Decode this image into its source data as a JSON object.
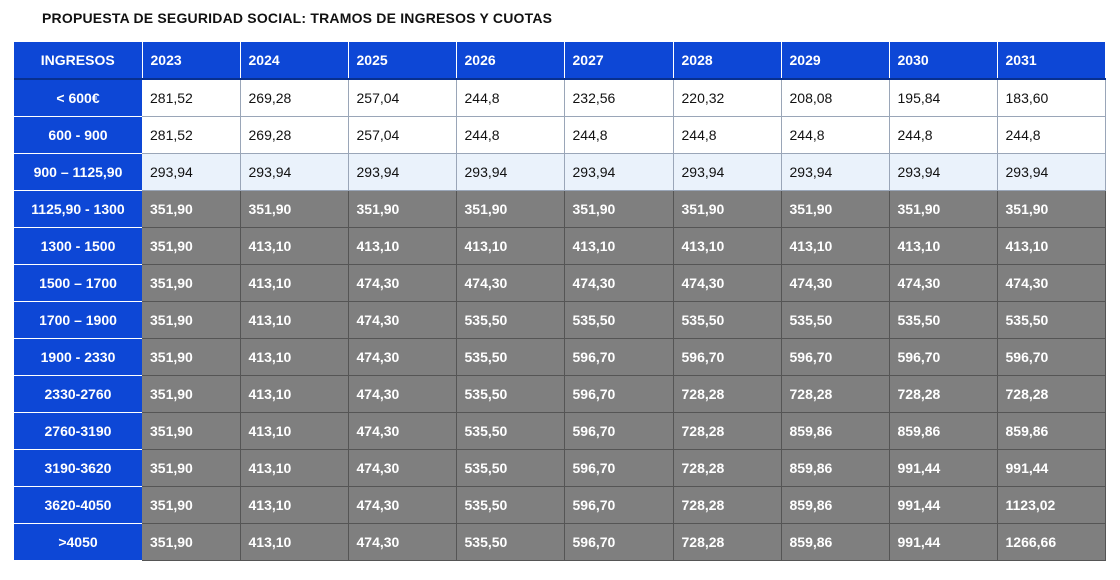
{
  "title": "PROPUESTA DE SEGURIDAD SOCIAL: TRAMOS DE INGRESOS Y CUOTAS",
  "table": {
    "corner_label": "INGRESOS",
    "years": [
      "2023",
      "2024",
      "2025",
      "2026",
      "2027",
      "2028",
      "2029",
      "2030",
      "2031"
    ],
    "rows": [
      {
        "label": "< 600€",
        "style": "light",
        "values": [
          "281,52",
          "269,28",
          "257,04",
          "244,8",
          "232,56",
          "220,32",
          "208,08",
          "195,84",
          "183,60"
        ]
      },
      {
        "label": "600 - 900",
        "style": "light",
        "values": [
          "281,52",
          "269,28",
          "257,04",
          "244,8",
          "244,8",
          "244,8",
          "244,8",
          "244,8",
          "244,8"
        ]
      },
      {
        "label": "900 – 1125,90",
        "style": "light-blue",
        "values": [
          "293,94",
          "293,94",
          "293,94",
          "293,94",
          "293,94",
          "293,94",
          "293,94",
          "293,94",
          "293,94"
        ]
      },
      {
        "label": "1125,90 - 1300",
        "style": "dark",
        "values": [
          "351,90",
          "351,90",
          "351,90",
          "351,90",
          "351,90",
          "351,90",
          "351,90",
          "351,90",
          "351,90"
        ]
      },
      {
        "label": "1300 - 1500",
        "style": "dark",
        "values": [
          "351,90",
          "413,10",
          "413,10",
          "413,10",
          "413,10",
          "413,10",
          "413,10",
          "413,10",
          "413,10"
        ]
      },
      {
        "label": "1500 – 1700",
        "style": "dark",
        "values": [
          "351,90",
          "413,10",
          "474,30",
          "474,30",
          "474,30",
          "474,30",
          "474,30",
          "474,30",
          "474,30"
        ]
      },
      {
        "label": "1700 – 1900",
        "style": "dark",
        "values": [
          "351,90",
          "413,10",
          "474,30",
          "535,50",
          "535,50",
          "535,50",
          "535,50",
          "535,50",
          "535,50"
        ]
      },
      {
        "label": "1900 - 2330",
        "style": "dark",
        "values": [
          "351,90",
          "413,10",
          "474,30",
          "535,50",
          "596,70",
          "596,70",
          "596,70",
          "596,70",
          "596,70"
        ]
      },
      {
        "label": "2330-2760",
        "style": "dark",
        "values": [
          "351,90",
          "413,10",
          "474,30",
          "535,50",
          "596,70",
          "728,28",
          "728,28",
          "728,28",
          "728,28"
        ]
      },
      {
        "label": "2760-3190",
        "style": "dark",
        "values": [
          "351,90",
          "413,10",
          "474,30",
          "535,50",
          "596,70",
          "728,28",
          "859,86",
          "859,86",
          "859,86"
        ]
      },
      {
        "label": "3190-3620",
        "style": "dark",
        "values": [
          "351,90",
          "413,10",
          "474,30",
          "535,50",
          "596,70",
          "728,28",
          "859,86",
          "991,44",
          "991,44"
        ]
      },
      {
        "label": "3620-4050",
        "style": "dark",
        "values": [
          "351,90",
          "413,10",
          "474,30",
          "535,50",
          "596,70",
          "728,28",
          "859,86",
          "991,44",
          "1123,02"
        ]
      },
      {
        "label": ">4050",
        "style": "dark",
        "values": [
          "351,90",
          "413,10",
          "474,30",
          "535,50",
          "596,70",
          "728,28",
          "859,86",
          "991,44",
          "1266,66"
        ]
      }
    ]
  },
  "colors": {
    "header_blue": "#0d47d6",
    "dark_row": "#7f7f7f",
    "light_blue_row": "#eaf2fb"
  }
}
